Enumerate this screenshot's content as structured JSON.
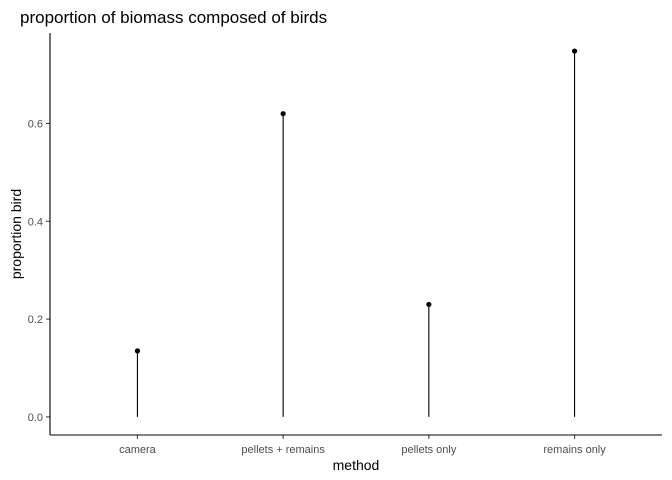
{
  "chart_data": {
    "type": "lollipop",
    "title": "proportion of biomass composed of birds",
    "xlabel": "method",
    "ylabel": "proportion bird",
    "categories": [
      "camera",
      "pellets + remains",
      "pellets only",
      "remains only"
    ],
    "values": [
      0.135,
      0.62,
      0.23,
      0.748
    ],
    "yticks": [
      0.0,
      0.2,
      0.4,
      0.6
    ],
    "ytick_labels": [
      "0.0",
      "0.2",
      "0.4",
      "0.6"
    ],
    "ylim": [
      -0.037,
      0.785
    ],
    "grid": false,
    "colors": {
      "marks": "#000000",
      "tick_text": "#4d4d4d",
      "background": "#ffffff"
    }
  }
}
